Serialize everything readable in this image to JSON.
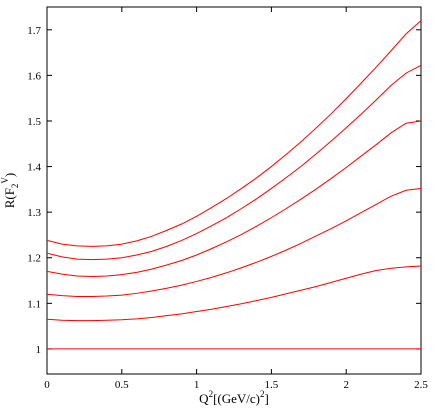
{
  "chart_data": {
    "type": "line",
    "xlabel": {
      "base": "Q",
      "sup": "2",
      "rest": "[(GeV/c)",
      "sup2": "2",
      "close": "]"
    },
    "ylabel": {
      "prefix": "R(F",
      "sub": "2",
      "sup": "V",
      "suffix": ")"
    },
    "xlim": [
      0,
      2.5
    ],
    "ylim": [
      0.945,
      1.75
    ],
    "x_ticks": [
      0,
      0.5,
      1,
      1.5,
      2,
      2.5
    ],
    "x_tick_labels": [
      "0",
      "0.5",
      "1",
      "1.5",
      "2",
      "2.5"
    ],
    "y_ticks": [
      1,
      1.1,
      1.2,
      1.3,
      1.4,
      1.5,
      1.6,
      1.7
    ],
    "y_tick_labels": [
      "1",
      "1.1",
      "1.2",
      "1.3",
      "1.4",
      "1.5",
      "1.6",
      "1.7"
    ],
    "grid": false,
    "line_color": "#ff0000",
    "x": [
      0,
      0.1,
      0.2,
      0.3,
      0.4,
      0.5,
      0.6,
      0.7,
      0.8,
      0.9,
      1.0,
      1.1,
      1.2,
      1.3,
      1.4,
      1.5,
      1.6,
      1.7,
      1.8,
      1.9,
      2.0,
      2.1,
      2.2,
      2.3,
      2.4,
      2.5
    ],
    "series": [
      {
        "values": [
          1.238,
          1.23,
          1.226,
          1.225,
          1.226,
          1.23,
          1.237,
          1.247,
          1.26,
          1.274,
          1.291,
          1.31,
          1.33,
          1.352,
          1.375,
          1.4,
          1.427,
          1.455,
          1.485,
          1.516,
          1.549,
          1.583,
          1.618,
          1.654,
          1.691,
          1.72
        ]
      },
      {
        "values": [
          1.21,
          1.202,
          1.197,
          1.196,
          1.197,
          1.2,
          1.206,
          1.214,
          1.225,
          1.238,
          1.253,
          1.27,
          1.288,
          1.308,
          1.329,
          1.352,
          1.376,
          1.401,
          1.428,
          1.456,
          1.485,
          1.515,
          1.546,
          1.578,
          1.605,
          1.622
        ]
      },
      {
        "values": [
          1.17,
          1.164,
          1.16,
          1.159,
          1.16,
          1.163,
          1.168,
          1.175,
          1.184,
          1.194,
          1.206,
          1.22,
          1.235,
          1.251,
          1.269,
          1.288,
          1.308,
          1.329,
          1.351,
          1.374,
          1.398,
          1.423,
          1.448,
          1.474,
          1.495,
          1.5
        ]
      },
      {
        "values": [
          1.12,
          1.117,
          1.115,
          1.115,
          1.116,
          1.118,
          1.122,
          1.127,
          1.133,
          1.14,
          1.148,
          1.157,
          1.167,
          1.178,
          1.19,
          1.203,
          1.217,
          1.232,
          1.248,
          1.264,
          1.281,
          1.299,
          1.317,
          1.335,
          1.348,
          1.352
        ]
      },
      {
        "values": [
          1.065,
          1.063,
          1.062,
          1.062,
          1.063,
          1.064,
          1.066,
          1.069,
          1.073,
          1.077,
          1.082,
          1.087,
          1.093,
          1.099,
          1.106,
          1.113,
          1.121,
          1.129,
          1.137,
          1.146,
          1.155,
          1.164,
          1.172,
          1.177,
          1.18,
          1.182
        ]
      },
      {
        "values": [
          1.0,
          1.0,
          1.0,
          1.0,
          1.0,
          1.0,
          1.0,
          1.0,
          1.0,
          1.0,
          1.0,
          1.0,
          1.0,
          1.0,
          1.0,
          1.0,
          1.0,
          1.0,
          1.0,
          1.0,
          1.0,
          1.0,
          1.0,
          1.0,
          1.0,
          1.0
        ]
      }
    ]
  }
}
